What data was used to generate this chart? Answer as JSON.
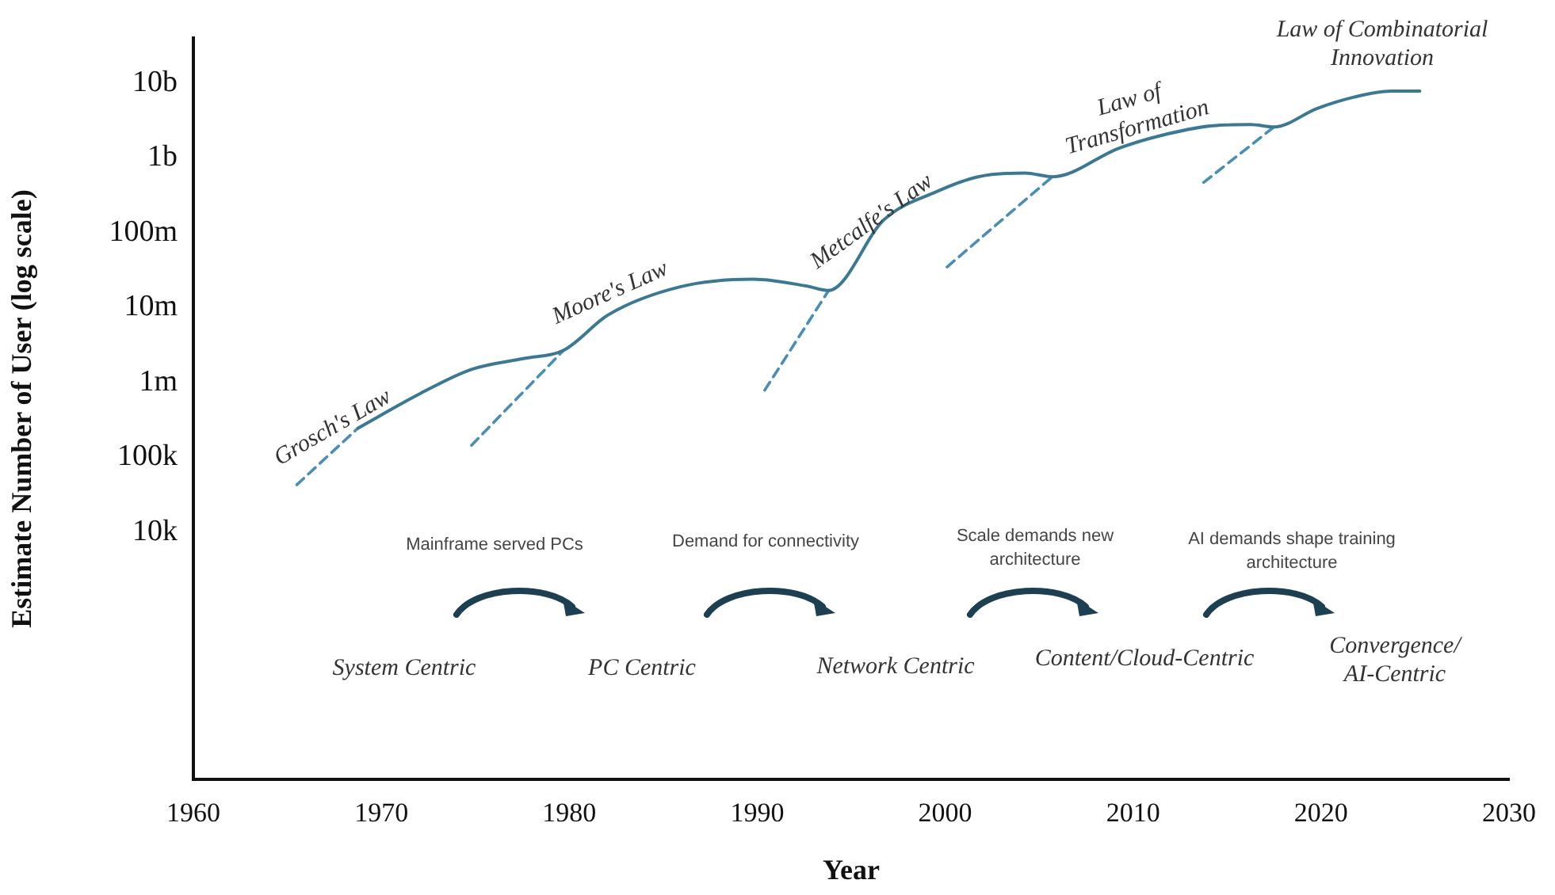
{
  "chart_data": {
    "type": "line",
    "xlabel": "Year",
    "ylabel": "Estimate Number of User (log scale)",
    "log": "y",
    "grid": false,
    "legend": false,
    "marker": "none",
    "xlim": [
      1960,
      2030
    ],
    "xticks": [
      1960,
      1970,
      1980,
      1990,
      2000,
      2010,
      2020,
      2030
    ],
    "ylim": [
      5,
      40000000000
    ],
    "yticks": [
      {
        "value": 10000,
        "label": "10k"
      },
      {
        "value": 100000,
        "label": "100k"
      },
      {
        "value": 1000000,
        "label": "1m"
      },
      {
        "value": 10000000,
        "label": "10m"
      },
      {
        "value": 100000000,
        "label": "100m"
      },
      {
        "value": 1000000000,
        "label": "1b"
      },
      {
        "value": 10000000000,
        "label": "10b"
      }
    ],
    "series": [
      {
        "color": "#3b7894",
        "line_style": "solid",
        "x": [
          1968.75,
          1972.1,
          1974.8,
          1977.6,
          1979.7,
          1982.1,
          1985.9,
          1989.8,
          1992.6,
          1993.8,
          1996.75,
          1999.6,
          2001.75,
          2004.25,
          2005.7,
          2009.25,
          2011.5,
          2014.25,
          2016.25,
          2017.5,
          2019.8,
          2021.75,
          2023.75,
          2025.25
        ],
        "values": [
          245000,
          720000,
          1500000,
          2100000,
          2700000,
          8100000,
          19000000,
          24000000,
          19500000,
          17000000,
          150000000,
          360000000,
          560000000,
          630000000,
          560000000,
          1350000000,
          2000000000,
          2700000000,
          2800000000,
          2600000000,
          4600000000,
          6500000000,
          7800000000,
          7800000000
        ]
      },
      {
        "color": "#4a8db5",
        "line_style": "dashed",
        "x": [
          1965.5,
          1968.75,
          1971,
          1974.8,
          1979.7,
          1985,
          1990.4,
          1993.8,
          1997,
          2000.1,
          2005.7,
          2010,
          2013.75,
          2017.5
        ],
        "values": [
          43000,
          245000,
          null,
          145000,
          2700000,
          null,
          790000,
          17000000,
          null,
          35000000,
          560000000,
          null,
          470000000,
          2600000000
        ]
      }
    ],
    "annotations": [
      "Grosch's Law",
      "Moore's Law",
      "Metcalfe's Law",
      "Law of\nTransformation",
      "Law of Combinatorial\nInnovation",
      "System Centric",
      "PC Centric",
      "Network Centric",
      "Content/Cloud-Centric",
      "Convergence/\nAI-Centric",
      "Mainframe served PCs",
      "Demand for connectivity",
      "Scale demands new\narchitecture",
      "AI demands shape training\narchitecture"
    ]
  }
}
